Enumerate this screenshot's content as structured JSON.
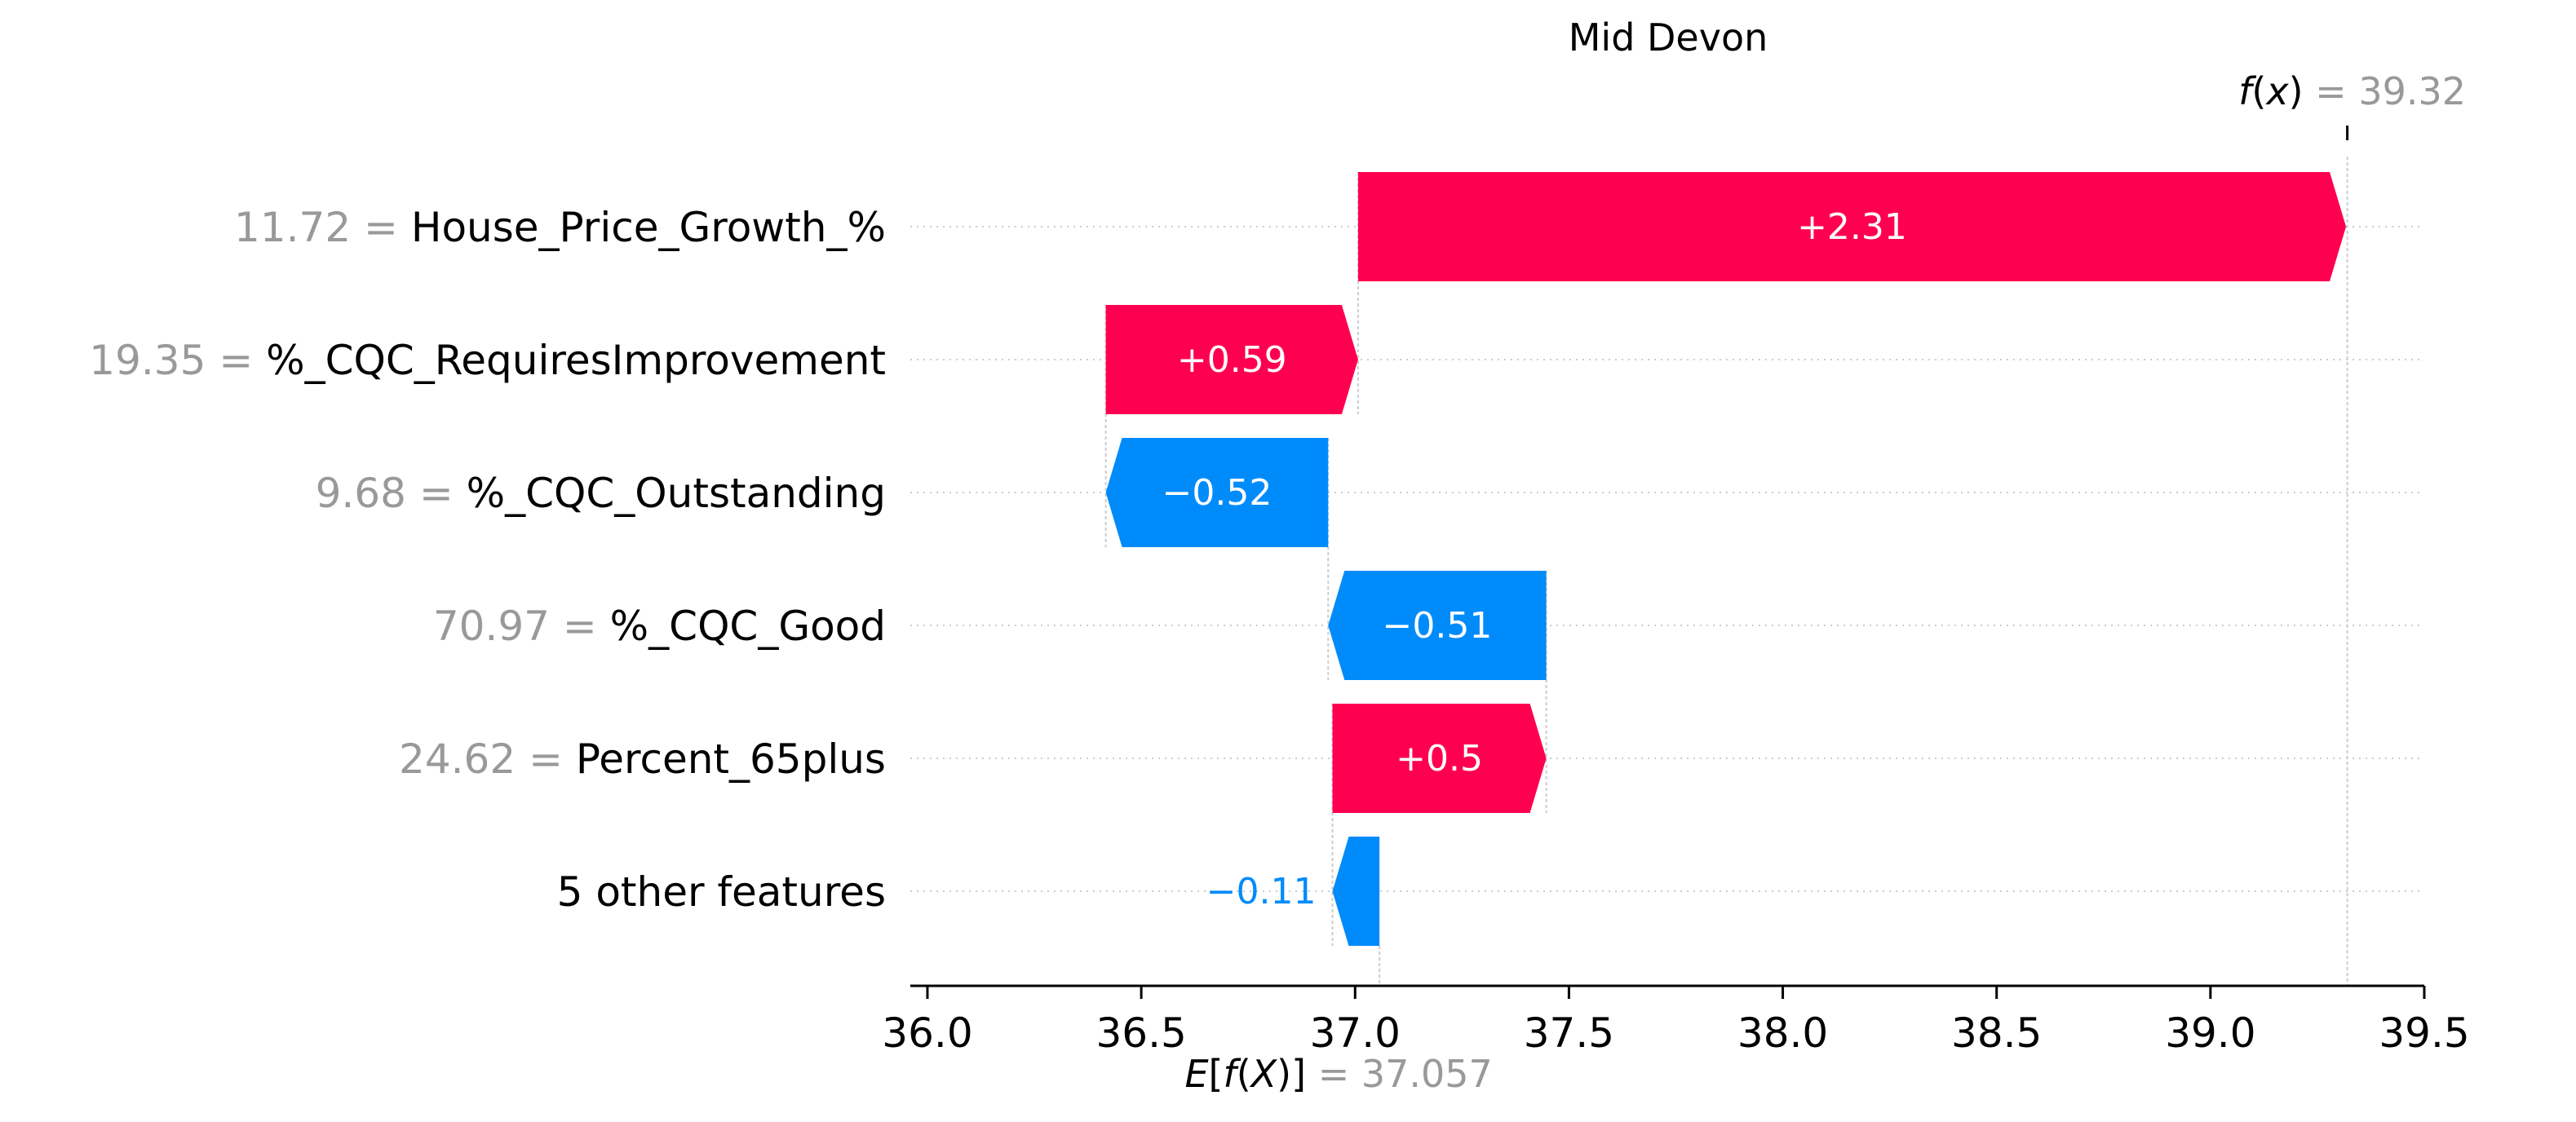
{
  "chart_data": {
    "type": "waterfall",
    "title": "Mid Devon",
    "fx": {
      "prefix": "f",
      "var": "x",
      "value": "39.32",
      "value_num": 39.32
    },
    "base": {
      "prefix": "E",
      "func": "f",
      "var": "X",
      "value": "37.057",
      "value_num": 37.057
    },
    "xlim": [
      35.96,
      39.5
    ],
    "xticks": [
      {
        "value": 36.0,
        "label": "36.0"
      },
      {
        "value": 36.5,
        "label": "36.5"
      },
      {
        "value": 37.0,
        "label": "37.0"
      },
      {
        "value": 37.5,
        "label": "37.5"
      },
      {
        "value": 38.0,
        "label": "38.0"
      },
      {
        "value": 38.5,
        "label": "38.5"
      },
      {
        "value": 39.0,
        "label": "39.0"
      },
      {
        "value": 39.5,
        "label": "39.5"
      }
    ],
    "features": [
      {
        "value_label": "11.72",
        "name": "House_Price_Growth_%",
        "contribution": 2.31,
        "contribution_label": "+2.31"
      },
      {
        "value_label": "19.35",
        "name": "%_CQC_RequiresImprovement",
        "contribution": 0.59,
        "contribution_label": "+0.59"
      },
      {
        "value_label": "9.68",
        "name": "%_CQC_Outstanding",
        "contribution": -0.52,
        "contribution_label": "−0.52"
      },
      {
        "value_label": "70.97",
        "name": "%_CQC_Good",
        "contribution": -0.51,
        "contribution_label": "−0.51"
      },
      {
        "value_label": "24.62",
        "name": "Percent_65plus",
        "contribution": 0.5,
        "contribution_label": "+0.5"
      },
      {
        "value_label": "",
        "name": "5 other features",
        "contribution": -0.11,
        "contribution_label": "−0.11"
      }
    ],
    "colors": {
      "positive": "#ff0051",
      "negative": "#008bfb",
      "muted": "#999999",
      "text": "#000000",
      "grid": "#cccccc"
    }
  }
}
